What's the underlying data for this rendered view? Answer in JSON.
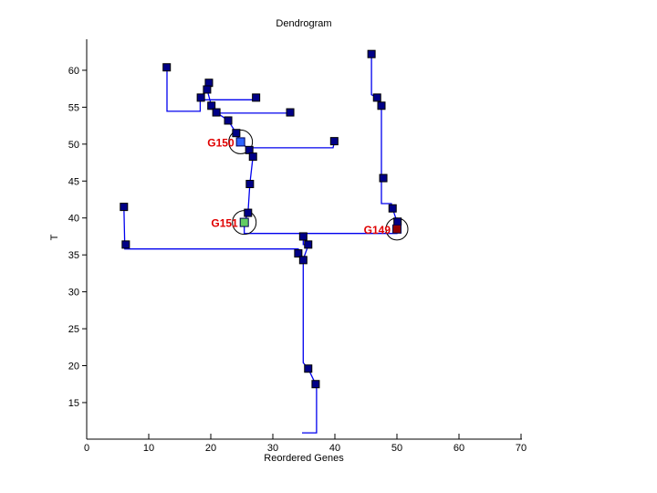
{
  "figure": {
    "title": "Dendrogram",
    "xlabel": "Reordered Genes",
    "ylabel": "T"
  },
  "chart_data": {
    "type": "line",
    "subtype": "dendrogram-scatter",
    "title": "Dendrogram",
    "xlabel": "Reordered Genes",
    "ylabel": "T",
    "xlim": [
      0,
      70
    ],
    "ylim": [
      10.05,
      64.2
    ],
    "xticks": [
      0,
      10,
      20,
      30,
      40,
      50,
      60,
      70
    ],
    "yticks": [
      15,
      20,
      25,
      30,
      35,
      40,
      45,
      50,
      55,
      60
    ],
    "grid": false,
    "legend": null,
    "colors": {
      "line": "#0000EE",
      "marker_fill": "#000087",
      "marker_edge": "#000000",
      "axis": "#000000",
      "annotation_circle": "#000000",
      "gene_label": "#E00000",
      "g150_fill": "#2E64FE",
      "g151_fill": "#63CC63",
      "g149_fill": "#8F0000"
    },
    "nodes": [
      [
        12.9,
        60.4
      ],
      [
        19.7,
        58.3
      ],
      [
        19.4,
        57.4
      ],
      [
        18.4,
        56.3
      ],
      [
        27.3,
        56.3
      ],
      [
        20.1,
        55.2
      ],
      [
        20.9,
        54.3
      ],
      [
        32.8,
        54.3
      ],
      [
        22.8,
        53.2
      ],
      [
        24.1,
        51.5
      ],
      [
        26.2,
        49.2
      ],
      [
        39.9,
        50.4
      ],
      [
        26.8,
        48.3
      ],
      [
        26.3,
        44.6
      ],
      [
        26.0,
        40.7
      ],
      [
        6.0,
        41.5
      ],
      [
        6.3,
        36.4
      ],
      [
        34.9,
        37.5
      ],
      [
        35.7,
        36.4
      ],
      [
        34.1,
        35.2
      ],
      [
        34.9,
        34.3
      ],
      [
        35.7,
        19.6
      ],
      [
        36.9,
        17.5
      ],
      [
        45.9,
        62.2
      ],
      [
        46.8,
        56.3
      ],
      [
        47.5,
        55.2
      ],
      [
        47.8,
        45.4
      ],
      [
        49.3,
        41.3
      ],
      [
        50.1,
        39.5
      ]
    ],
    "segments": [
      [
        [
          12.94,
          59.9
        ],
        [
          12.94,
          54.45
        ],
        [
          18.3,
          54.45
        ],
        [
          18.3,
          56.0
        ]
      ],
      [
        [
          19.7,
          58.3
        ],
        [
          19.4,
          57.4
        ],
        [
          20.1,
          55.2
        ],
        [
          20.9,
          54.3
        ]
      ],
      [
        [
          18.3,
          56.0
        ],
        [
          27.3,
          56.0
        ]
      ],
      [
        [
          20.9,
          54.2
        ],
        [
          32.8,
          54.2
        ]
      ],
      [
        [
          20.9,
          54.3
        ],
        [
          22.8,
          53.2
        ],
        [
          24.1,
          51.5
        ],
        [
          24.8,
          50.3
        ],
        [
          26.2,
          49.2
        ],
        [
          26.8,
          48.3
        ]
      ],
      [
        [
          25.9,
          49.5
        ],
        [
          39.7,
          49.5
        ],
        [
          39.9,
          50.2
        ]
      ],
      [
        [
          26.8,
          48.3
        ],
        [
          26.3,
          44.6
        ],
        [
          26.0,
          40.7
        ],
        [
          25.4,
          39.4
        ],
        [
          25.4,
          37.9
        ],
        [
          50.0,
          37.9
        ],
        [
          50.0,
          38.5
        ]
      ],
      [
        [
          6.0,
          41.5
        ],
        [
          6.15,
          35.8
        ],
        [
          34.1,
          35.8
        ],
        [
          34.1,
          35.2
        ],
        [
          34.9,
          34.3
        ]
      ],
      [
        [
          34.9,
          37.6
        ],
        [
          34.9,
          36.4
        ],
        [
          35.7,
          36.4
        ]
      ],
      [
        [
          35.7,
          36.3
        ],
        [
          34.9,
          34.4
        ]
      ],
      [
        [
          34.9,
          34.3
        ],
        [
          34.9,
          20.4
        ],
        [
          35.7,
          19.6
        ],
        [
          36.9,
          17.5
        ],
        [
          37.05,
          16.9
        ],
        [
          37.05,
          10.9
        ],
        [
          34.7,
          10.9
        ]
      ],
      [
        [
          45.9,
          62.2
        ],
        [
          45.9,
          56.7
        ],
        [
          46.8,
          56.3
        ],
        [
          47.5,
          55.2
        ],
        [
          47.5,
          41.95
        ],
        [
          49.1,
          41.95
        ],
        [
          49.3,
          41.3
        ],
        [
          50.0,
          39.5
        ]
      ]
    ],
    "highlighted_nodes": [
      {
        "label": "G150",
        "x": 24.8,
        "T": 50.3,
        "fill": "#2E64FE",
        "circle_r": 13
      },
      {
        "label": "G151",
        "x": 25.4,
        "T": 39.4,
        "fill": "#63CC63",
        "circle_r": 13
      },
      {
        "label": "G149",
        "x": 50.0,
        "T": 38.5,
        "fill": "#8F0000",
        "circle_r": 12
      }
    ]
  }
}
